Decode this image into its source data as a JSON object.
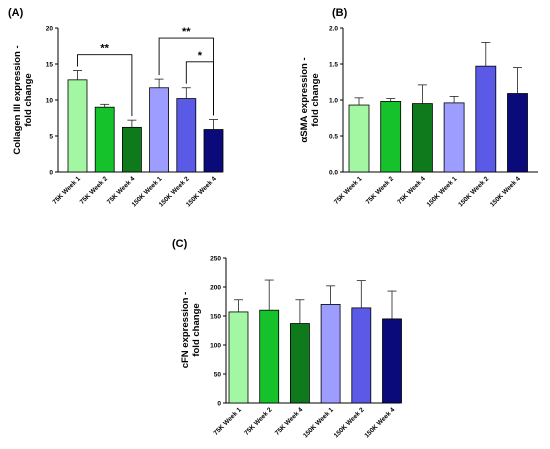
{
  "colors": [
    "#a3f7a3",
    "#16c22c",
    "#0e7a1c",
    "#9d9dff",
    "#5a5ae6",
    "#0a0a7a"
  ],
  "chart_data": [
    {
      "type": "bar",
      "panel": "(A)",
      "ylabel_lines": [
        "Collagen III expression -",
        "fold change"
      ],
      "categories": [
        "75K Week 1",
        "75K Week 2",
        "75K Week 4",
        "150K Week 1",
        "150K Week 2",
        "150K Week 4"
      ],
      "values": [
        12.8,
        9.0,
        6.2,
        11.7,
        10.2,
        5.9
      ],
      "errors": [
        1.3,
        0.4,
        1.0,
        1.2,
        1.5,
        1.4
      ],
      "ylim": [
        0,
        20
      ],
      "yticks": [
        0,
        5,
        10,
        15,
        20
      ],
      "significance": [
        {
          "from": 0,
          "to": 2,
          "label": "**",
          "level": 1
        },
        {
          "from": 3,
          "to": 5,
          "label": "**",
          "level": 2
        },
        {
          "from": 4,
          "to": 5,
          "label": "*",
          "level": 1
        }
      ]
    },
    {
      "type": "bar",
      "panel": "(B)",
      "ylabel_lines": [
        "αSMA expression -",
        "fold change"
      ],
      "categories": [
        "75K Week 1",
        "75K Week 2",
        "75K Week 4",
        "150K Week 1",
        "150K Week 2",
        "150K Week 4"
      ],
      "values": [
        0.93,
        0.98,
        0.95,
        0.96,
        1.47,
        1.09
      ],
      "errors": [
        0.1,
        0.04,
        0.26,
        0.09,
        0.33,
        0.36
      ],
      "ylim": [
        0,
        2.0
      ],
      "yticks": [
        0.0,
        0.5,
        1.0,
        1.5,
        2.0
      ],
      "tick_labels": [
        "0.0",
        "0.5",
        "1.0",
        "1.5",
        "2.0"
      ],
      "significance": []
    },
    {
      "type": "bar",
      "panel": "(C)",
      "ylabel_lines": [
        "cFN expression -",
        "fold change"
      ],
      "categories": [
        "75K Week 1",
        "75K Week 2",
        "75K Week 4",
        "150K Week 1",
        "150K Week 2",
        "150K Week 4"
      ],
      "values": [
        157,
        160,
        137,
        170,
        164,
        145
      ],
      "errors": [
        21,
        52,
        41,
        32,
        47,
        48
      ],
      "ylim": [
        0,
        250
      ],
      "yticks": [
        0,
        50,
        100,
        150,
        200,
        250
      ],
      "significance": []
    }
  ]
}
